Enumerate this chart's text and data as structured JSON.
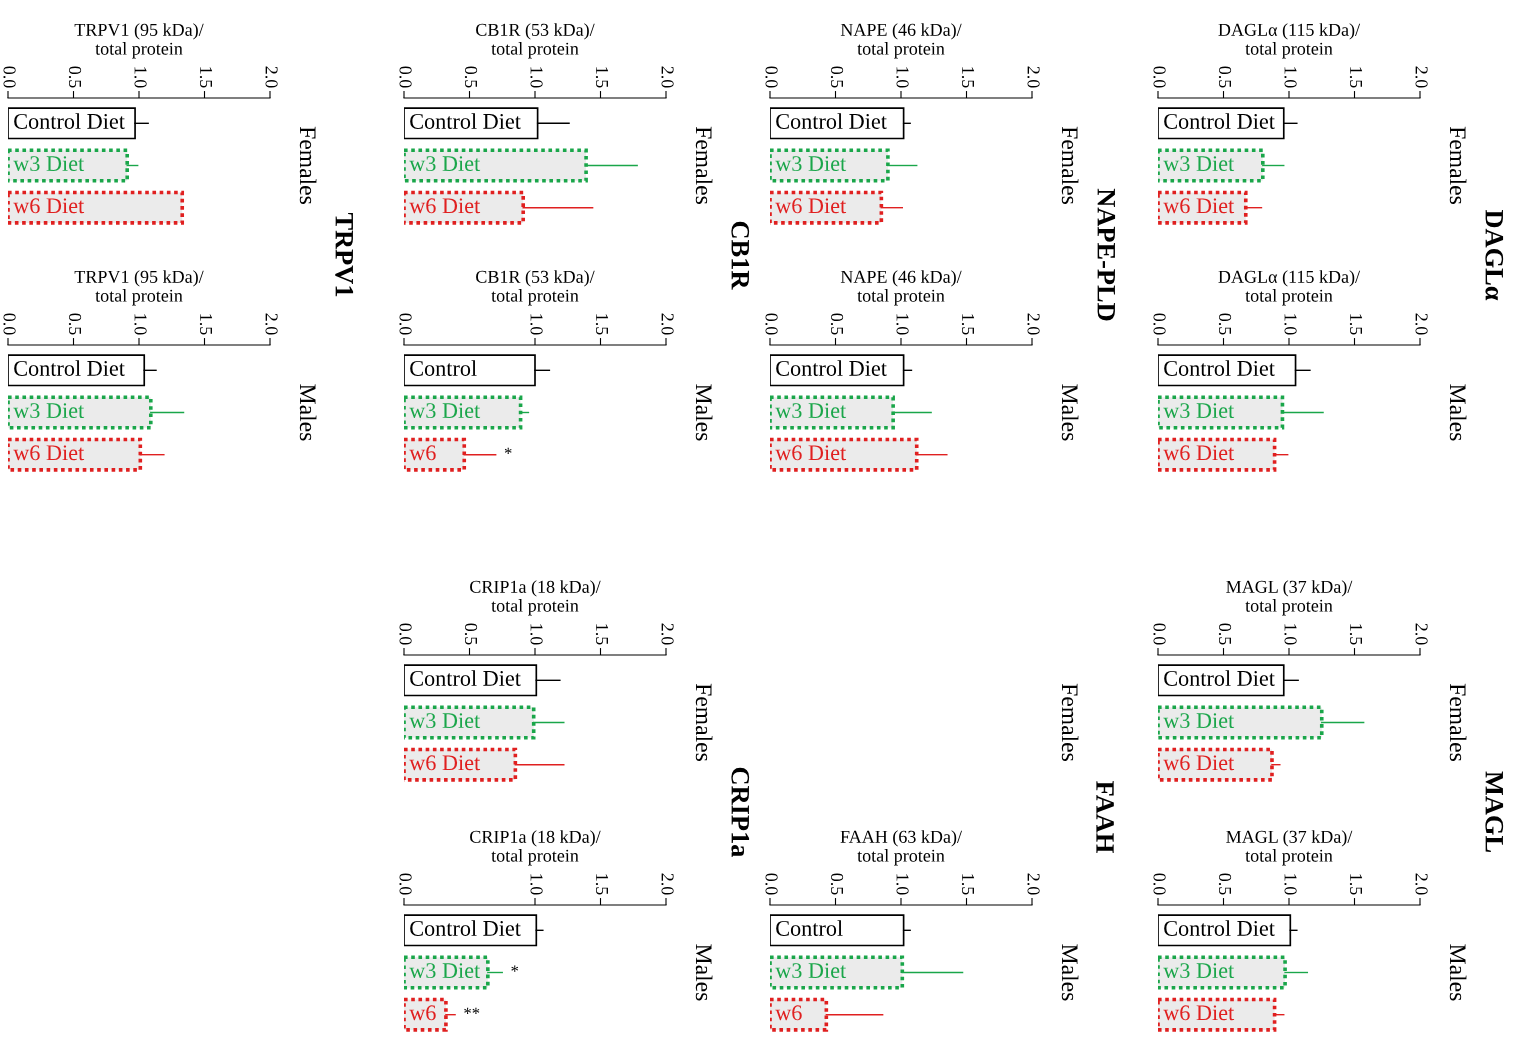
{
  "chart_data": [
    {
      "type": "bar",
      "orientation": "horizontal",
      "ylabel": "Females",
      "xlabel": "DAGLα (115 kDa)/\ntotal protein",
      "categories": [
        "Control Diet",
        "w3 Diet",
        "w6 Diet"
      ],
      "values": [
        0.96,
        0.8,
        0.67
      ],
      "errors": [
        [
          0.96,
          1.06
        ],
        [
          0.8,
          0.96
        ],
        [
          0.67,
          0.79
        ]
      ],
      "colors": [
        "#000000",
        "#1aa64a",
        "#e02020"
      ],
      "xlim": [
        0,
        2.0
      ],
      "xticks": [
        {
          "value": 0,
          "label": "0.0"
        },
        {
          "value": 0.5,
          "label": "0.5"
        },
        {
          "value": 1,
          "label": "1.0"
        },
        {
          "value": 1.5,
          "label": "1.5"
        },
        {
          "value": 2,
          "label": "2.0"
        }
      ]
    },
    {
      "type": "bar",
      "orientation": "horizontal",
      "ylabel": "Males",
      "xlabel": "DAGLα (115 kDa)/\ntotal protein",
      "categories": [
        "Control Diet",
        "w3 Diet",
        "w6 Diet"
      ],
      "values": [
        1.05,
        0.95,
        0.89
      ],
      "errors": [
        [
          1.05,
          1.16
        ],
        [
          0.95,
          1.26
        ],
        [
          0.89,
          0.99
        ]
      ],
      "colors": [
        "#000000",
        "#1aa64a",
        "#e02020"
      ],
      "xlim": [
        0,
        2.0
      ],
      "xticks": [
        {
          "value": 0,
          "label": "0.0"
        },
        {
          "value": 0.5,
          "label": "0.5"
        },
        {
          "value": 1,
          "label": "1.0"
        },
        {
          "value": 1.5,
          "label": "1.5"
        },
        {
          "value": 2,
          "label": "2.0"
        }
      ]
    },
    {
      "type": "bar",
      "orientation": "horizontal",
      "ylabel": "Females",
      "xlabel": "NAPE (46 kDa)/\ntotal protein",
      "categories": [
        "Control Diet",
        "w3 Diet",
        "w6 Diet"
      ],
      "values": [
        1.02,
        0.9,
        0.85
      ],
      "errors": [
        [
          1.02,
          1.07
        ],
        [
          0.9,
          1.12
        ],
        [
          0.85,
          1.01
        ]
      ],
      "colors": [
        "#000000",
        "#1aa64a",
        "#e02020"
      ],
      "xlim": [
        0,
        2.0
      ],
      "xticks": [
        {
          "value": 0,
          "label": "0.0"
        },
        {
          "value": 0.5,
          "label": "0.5"
        },
        {
          "value": 1,
          "label": "1.0"
        },
        {
          "value": 1.5,
          "label": "1.5"
        },
        {
          "value": 2,
          "label": "2.0"
        }
      ]
    },
    {
      "type": "bar",
      "orientation": "horizontal",
      "ylabel": "Males",
      "xlabel": "NAPE (46 kDa)/\ntotal protein",
      "categories": [
        "Control Diet",
        "w3 Diet",
        "w6 Diet"
      ],
      "values": [
        1.02,
        0.94,
        1.12
      ],
      "errors": [
        [
          1.02,
          1.08
        ],
        [
          0.94,
          1.23
        ],
        [
          1.12,
          1.35
        ]
      ],
      "colors": [
        "#000000",
        "#1aa64a",
        "#e02020"
      ],
      "xlim": [
        0,
        2.0
      ],
      "xticks": [
        {
          "value": 0,
          "label": "0.0"
        },
        {
          "value": 0.5,
          "label": "0.5"
        },
        {
          "value": 1,
          "label": "1.0"
        },
        {
          "value": 1.5,
          "label": "1.5"
        },
        {
          "value": 2,
          "label": "2.0"
        }
      ]
    },
    {
      "type": "bar",
      "orientation": "horizontal",
      "ylabel": "Females",
      "xlabel": "CB1R (53 kDa)/\ntotal protein",
      "categories": [
        "Control Diet",
        "w3 Diet",
        "w6 Diet"
      ],
      "values": [
        1.02,
        1.39,
        0.91
      ],
      "errors": [
        [
          1.02,
          1.26
        ],
        [
          1.39,
          1.78
        ],
        [
          0.91,
          1.44
        ]
      ],
      "colors": [
        "#000000",
        "#1aa64a",
        "#e02020"
      ],
      "xlim": [
        0,
        2.0
      ],
      "xticks": [
        {
          "value": 0,
          "label": "0.0"
        },
        {
          "value": 0.5,
          "label": "0.5"
        },
        {
          "value": 1,
          "label": "1.0"
        },
        {
          "value": 1.5,
          "label": "1.5"
        },
        {
          "value": 2,
          "label": "2.0"
        }
      ]
    },
    {
      "type": "bar",
      "orientation": "horizontal",
      "ylabel": "Males",
      "xlabel": "CB1R (53 kDa)/\ntotal protein",
      "categories": [
        "Control",
        "w3 Diet",
        "w6"
      ],
      "values": [
        1.0,
        0.89,
        0.46
      ],
      "errors": [
        [
          1.0,
          1.11
        ],
        [
          0.89,
          0.95
        ],
        [
          0.46,
          0.7
        ]
      ],
      "colors": [
        "#000000",
        "#1aa64a",
        "#e02020"
      ],
      "xlim": [
        0,
        2.0
      ],
      "xticks": [
        {
          "value": 0,
          "label": "0.0"
        },
        {
          "value": 1,
          "label": "1.0"
        },
        {
          "value": 1.5,
          "label": "1.5"
        },
        {
          "value": 2,
          "label": "2.0"
        }
      ],
      "annotations": [
        {
          "text": "*",
          "x": 0.7,
          "y": "w6"
        }
      ]
    },
    {
      "type": "bar",
      "orientation": "horizontal",
      "ylabel": "Females",
      "xlabel": "TRPV1 (95 kDa)/\ntotal protein",
      "categories": [
        "Control Diet",
        "w3 Diet",
        "w6 Diet"
      ],
      "values": [
        0.97,
        0.91,
        1.33
      ],
      "errors": [
        [
          0.97,
          1.07
        ],
        [
          0.91,
          0.99
        ],
        null
      ],
      "colors": [
        "#000000",
        "#1aa64a",
        "#e02020"
      ],
      "xlim": [
        0,
        2.0
      ],
      "xticks": [
        {
          "value": 0,
          "label": "0.0"
        },
        {
          "value": 0.5,
          "label": "0.5"
        },
        {
          "value": 1,
          "label": "1.0"
        },
        {
          "value": 1.5,
          "label": "1.5"
        },
        {
          "value": 2,
          "label": "2.0"
        }
      ]
    },
    {
      "type": "bar",
      "orientation": "horizontal",
      "ylabel": "Males",
      "xlabel": "TRPV1 (95 kDa)/\ntotal protein",
      "categories": [
        "Control Diet",
        "w3 Diet",
        "w6 Diet"
      ],
      "values": [
        1.04,
        1.09,
        1.01
      ],
      "errors": [
        [
          1.04,
          1.13
        ],
        [
          1.09,
          1.34
        ],
        [
          1.01,
          1.19
        ]
      ],
      "colors": [
        "#000000",
        "#1aa64a",
        "#e02020"
      ],
      "xlim": [
        0,
        2.0
      ],
      "xticks": [
        {
          "value": 0,
          "label": "0.0"
        },
        {
          "value": 0.5,
          "label": "0.5"
        },
        {
          "value": 1,
          "label": "1.0"
        },
        {
          "value": 1.5,
          "label": "1.5"
        },
        {
          "value": 2,
          "label": "2.0"
        }
      ]
    },
    {
      "type": "bar",
      "orientation": "horizontal",
      "ylabel": "Females",
      "xlabel": "MAGL (37 kDa)/\ntotal protein",
      "categories": [
        "Control Diet",
        "w3 Diet",
        "w6 Diet"
      ],
      "values": [
        0.96,
        1.25,
        0.87
      ],
      "errors": [
        [
          0.96,
          1.07
        ],
        [
          1.25,
          1.57
        ],
        [
          0.87,
          0.93
        ]
      ],
      "colors": [
        "#000000",
        "#1aa64a",
        "#e02020"
      ],
      "xlim": [
        0,
        2.0
      ],
      "xticks": [
        {
          "value": 0,
          "label": "0.0"
        },
        {
          "value": 0.5,
          "label": "0.5"
        },
        {
          "value": 1,
          "label": "1.0"
        },
        {
          "value": 1.5,
          "label": "1.5"
        },
        {
          "value": 2,
          "label": "2.0"
        }
      ]
    },
    {
      "type": "bar",
      "orientation": "horizontal",
      "ylabel": "Males",
      "xlabel": "MAGL (37 kDa)/\ntotal protein",
      "categories": [
        "Control Diet",
        "w3 Diet",
        "w6 Diet"
      ],
      "values": [
        1.01,
        0.97,
        0.89
      ],
      "errors": [
        [
          1.01,
          1.06
        ],
        [
          0.97,
          1.14
        ],
        [
          0.89,
          0.96
        ]
      ],
      "colors": [
        "#000000",
        "#1aa64a",
        "#e02020"
      ],
      "xlim": [
        0,
        2.0
      ],
      "xticks": [
        {
          "value": 0,
          "label": "0.0"
        },
        {
          "value": 0.5,
          "label": "0.5"
        },
        {
          "value": 1,
          "label": "1.0"
        },
        {
          "value": 1.5,
          "label": "1.5"
        },
        {
          "value": 2,
          "label": "2.0"
        }
      ]
    },
    {
      "type": "other",
      "title": "FAAH",
      "ylabel": "Females"
    },
    {
      "type": "bar",
      "orientation": "horizontal",
      "ylabel": "Males",
      "xlabel": "FAAH (63 kDa)/\ntotal protein",
      "categories": [
        "Control",
        "w3 Diet",
        "w6"
      ],
      "values": [
        1.02,
        1.01,
        0.43
      ],
      "errors": [
        [
          1.02,
          1.07
        ],
        [
          1.01,
          1.47
        ],
        [
          0.43,
          0.86
        ]
      ],
      "colors": [
        "#000000",
        "#1aa64a",
        "#e02020"
      ],
      "xlim": [
        0,
        2.0
      ],
      "xticks": [
        {
          "value": 0,
          "label": "0.0"
        },
        {
          "value": 0.5,
          "label": "0.5"
        },
        {
          "value": 1,
          "label": "1.0"
        },
        {
          "value": 1.5,
          "label": "1.5"
        },
        {
          "value": 2,
          "label": "2.0"
        }
      ]
    },
    {
      "type": "bar",
      "orientation": "horizontal",
      "ylabel": "Females",
      "xlabel": "CRIP1a (18 kDa)/\ntotal protein",
      "categories": [
        "Control Diet",
        "w3 Diet",
        "w6 Diet"
      ],
      "values": [
        1.01,
        0.99,
        0.85
      ],
      "errors": [
        [
          1.01,
          1.19
        ],
        [
          0.99,
          1.22
        ],
        [
          0.85,
          1.22
        ]
      ],
      "colors": [
        "#000000",
        "#1aa64a",
        "#e02020"
      ],
      "xlim": [
        0,
        2.0
      ],
      "xticks": [
        {
          "value": 0,
          "label": "0.0"
        },
        {
          "value": 0.5,
          "label": "0.5"
        },
        {
          "value": 1,
          "label": "1.0"
        },
        {
          "value": 1.5,
          "label": "1.5"
        },
        {
          "value": 2,
          "label": "2.0"
        }
      ]
    },
    {
      "type": "bar",
      "orientation": "horizontal",
      "ylabel": "Males",
      "xlabel": "CRIP1a (18 kDa)/\ntotal protein",
      "categories": [
        "Control Diet",
        "w3 Diet",
        "w6"
      ],
      "values": [
        1.01,
        0.64,
        0.32
      ],
      "errors": [
        [
          1.01,
          1.06
        ],
        [
          0.64,
          0.75
        ],
        [
          0.32,
          0.39
        ]
      ],
      "colors": [
        "#000000",
        "#1aa64a",
        "#e02020"
      ],
      "xlim": [
        0,
        2.0
      ],
      "xticks": [
        {
          "value": 0,
          "label": "0.0"
        },
        {
          "value": 1,
          "label": "1.0"
        },
        {
          "value": 1.5,
          "label": "1.5"
        },
        {
          "value": 2,
          "label": "2.0"
        }
      ],
      "annotations": [
        {
          "text": "*",
          "x": 0.75,
          "y": "w3 Diet"
        },
        {
          "text": "**",
          "x": 0.39,
          "y": "w6"
        }
      ]
    },
    {
      "type": "other",
      "title": "DAGLα"
    },
    {
      "type": "other",
      "title": "NAPE-PLD"
    },
    {
      "type": "other",
      "title": "CB1R"
    },
    {
      "type": "other",
      "title": "TRPV1"
    },
    {
      "type": "other",
      "title": "MAGL"
    },
    {
      "type": "other",
      "title": "CRIP1a"
    }
  ]
}
